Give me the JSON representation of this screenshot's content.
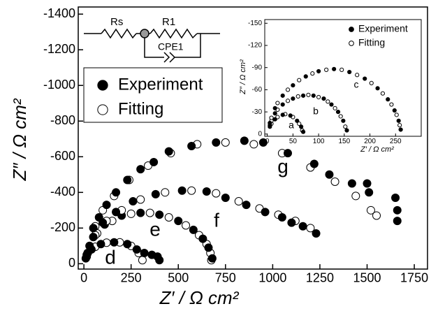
{
  "chart_data": [
    {
      "type": "scatter",
      "xlabel": "Z′ / Ω cm²",
      "ylabel": "Z″ / Ω cm²",
      "xlim": [
        -30,
        1820
      ],
      "ylim": [
        30,
        -1440
      ],
      "xticks": [
        0,
        250,
        500,
        750,
        1000,
        1250,
        1500,
        1750
      ],
      "yticks": [
        0,
        -200,
        -400,
        -600,
        -800,
        -1000,
        -1200,
        -1400
      ],
      "legend": [
        {
          "name": "Experiment",
          "marker": "filled"
        },
        {
          "name": "Fitting",
          "marker": "open"
        }
      ],
      "curves": [
        {
          "label": "d",
          "color": "#000000",
          "experiment": {
            "x": [
              10,
              40,
              90,
              160,
              230,
              280,
              320,
              360,
              390,
              400
            ],
            "values": [
              -30,
              -80,
              -110,
              -120,
              -110,
              -80,
              -60,
              -50,
              -40,
              -20
            ]
          },
          "fitting": {
            "x": [
              15,
              60,
              120,
              190,
              250,
              290,
              310
            ],
            "values": [
              -40,
              -95,
              -118,
              -120,
              -100,
              -60,
              -20
            ]
          }
        },
        {
          "label": "e",
          "color": "#000000",
          "experiment": {
            "x": [
              15,
              50,
              110,
              200,
              300,
              400,
              500,
              580,
              630,
              660,
              680
            ],
            "values": [
              -50,
              -150,
              -220,
              -270,
              -285,
              -275,
              -240,
              -190,
              -140,
              -90,
              -30
            ]
          },
          "fitting": {
            "x": [
              20,
              70,
              150,
              250,
              350,
              450,
              540,
              610,
              650,
              670,
              675
            ],
            "values": [
              -60,
              -170,
              -240,
              -280,
              -285,
              -260,
              -215,
              -160,
              -110,
              -60,
              -20
            ]
          }
        },
        {
          "label": "f",
          "color": "#000000",
          "experiment": {
            "x": [
              20,
              50,
              100,
              170,
              260,
              380,
              520,
              650,
              750,
              860,
              960,
              1050,
              1100,
              1160,
              1230
            ],
            "values": [
              -60,
              -150,
              -230,
              -290,
              -350,
              -390,
              -410,
              -405,
              -370,
              -330,
              -290,
              -260,
              -230,
              -210,
              -170
            ]
          },
          "fitting": {
            "x": [
              20,
              60,
              120,
              200,
              300,
              430,
              570,
              700,
              820,
              930,
              1030,
              1120,
              1200
            ],
            "values": [
              -60,
              -160,
              -240,
              -300,
              -360,
              -400,
              -410,
              -395,
              -350,
              -310,
              -275,
              -240,
              -200
            ]
          }
        },
        {
          "label": "g",
          "color": "#000000",
          "experiment": {
            "x": [
              30,
              50,
              80,
              120,
              170,
              230,
              300,
              370,
              450,
              570,
              700,
              850,
              950,
              1080,
              1220,
              1300,
              1420,
              1500,
              1510,
              1650,
              1660,
              1660
            ],
            "values": [
              -100,
              -200,
              -260,
              -330,
              -400,
              -470,
              -530,
              -570,
              -630,
              -660,
              -680,
              -690,
              -680,
              -620,
              -560,
              -500,
              -450,
              -450,
              -400,
              -370,
              -300,
              -240
            ]
          },
          "fitting": {
            "x": [
              30,
              60,
              100,
              160,
              240,
              340,
              460,
              600,
              750,
              900,
              1050,
              1200,
              1330,
              1440,
              1520,
              1550
            ],
            "values": [
              -100,
              -210,
              -300,
              -380,
              -470,
              -550,
              -620,
              -670,
              -680,
              -670,
              -620,
              -540,
              -460,
              -380,
              -300,
              -270
            ]
          }
        }
      ]
    },
    {
      "type": "scatter",
      "xlabel": "Z′ / Ω cm²",
      "ylabel": "Z″ / Ω cm²",
      "xlim": [
        -5,
        300
      ],
      "ylim": [
        3,
        -155
      ],
      "xticks": [
        0,
        50,
        100,
        150,
        200,
        250
      ],
      "yticks": [
        0,
        -30,
        -60,
        -90,
        -120,
        -150
      ],
      "legend": [
        {
          "name": "Experiment",
          "marker": "filled"
        },
        {
          "name": "Fitting",
          "marker": "open"
        }
      ],
      "curves": [
        {
          "label": "a",
          "color": "#000000",
          "experiment": {
            "x": [
              5,
              15,
              30,
              45,
              58,
              66,
              70
            ],
            "values": [
              -10,
              -20,
              -26,
              -25,
              -18,
              -10,
              -3
            ]
          },
          "fitting": {
            "x": [
              8,
              20,
              35,
              50,
              62,
              68
            ],
            "values": [
              -14,
              -23,
              -27,
              -23,
              -14,
              -5
            ]
          }
        },
        {
          "label": "b",
          "color": "#000000",
          "experiment": {
            "x": [
              5,
              15,
              30,
              50,
              70,
              90,
              110,
              125,
              138,
              148,
              155
            ],
            "values": [
              -12,
              -28,
              -40,
              -48,
              -52,
              -52,
              -48,
              -40,
              -30,
              -18,
              -5
            ]
          },
          "fitting": {
            "x": [
              8,
              20,
              40,
              60,
              80,
              100,
              118,
              132,
              143,
              152
            ],
            "values": [
              -18,
              -33,
              -45,
              -51,
              -53,
              -50,
              -44,
              -35,
              -24,
              -10
            ]
          }
        },
        {
          "label": "c",
          "color": "#000000",
          "experiment": {
            "x": [
              5,
              15,
              30,
              50,
              75,
              100,
              130,
              160,
              190,
              215,
              235,
              248,
              256,
              260
            ],
            "values": [
              -15,
              -35,
              -52,
              -66,
              -78,
              -85,
              -88,
              -84,
              -75,
              -62,
              -47,
              -32,
              -18,
              -6
            ]
          },
          "fitting": {
            "x": [
              8,
              20,
              40,
              62,
              88,
              115,
              145,
              175,
              203,
              225,
              242,
              252,
              258
            ],
            "values": [
              -22,
              -42,
              -60,
              -73,
              -82,
              -87,
              -87,
              -80,
              -69,
              -55,
              -40,
              -26,
              -12
            ]
          }
        }
      ]
    }
  ],
  "circuit": {
    "labels": [
      "Rs",
      "R1",
      "CPE1"
    ]
  }
}
